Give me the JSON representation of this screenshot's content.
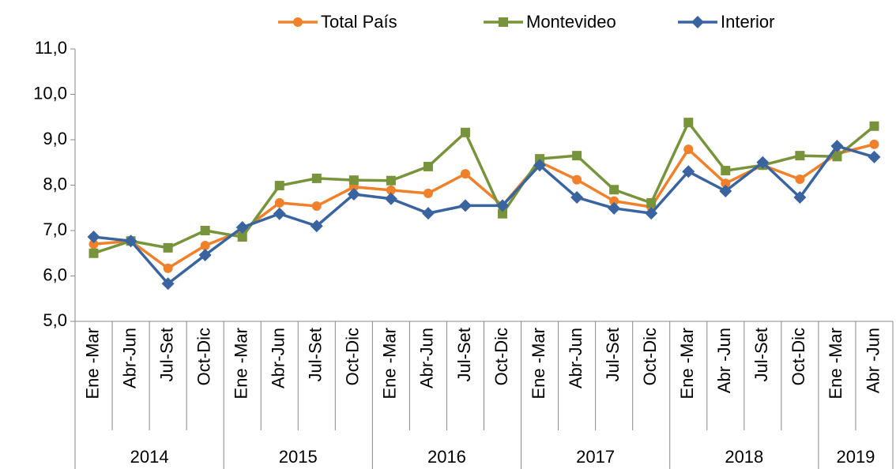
{
  "chart_data": {
    "type": "line",
    "categories": [
      "Ene -Mar",
      "Abr-Jun",
      "Jul-Set",
      "Oct-Dic",
      "Ene -Mar",
      "Abr-Jun",
      "Jul-Set",
      "Oct-Dic",
      "Ene -Mar",
      "Abr-Jun",
      "Jul-Set",
      "Oct-Dic",
      "Ene -Mar",
      "Abr-Jun",
      "Jul-Set",
      "Oct-Dic",
      "Ene -Mar",
      "Abr -Jun",
      "Jul-Set",
      "Oct-Dic",
      "Ene -Mar",
      "Abr -Jun"
    ],
    "years": [
      "2014",
      null,
      null,
      null,
      "2015",
      null,
      null,
      null,
      "2016",
      null,
      null,
      null,
      "2017",
      null,
      null,
      null,
      "2018",
      null,
      null,
      null,
      "2019",
      null
    ],
    "series": [
      {
        "name": "Total País",
        "color": "#f0802a",
        "marker": "circle",
        "values": [
          6.7,
          6.77,
          6.17,
          6.67,
          7.0,
          7.61,
          7.54,
          7.96,
          7.89,
          7.82,
          8.25,
          7.55,
          8.51,
          8.12,
          7.65,
          7.52,
          8.79,
          8.04,
          8.44,
          8.13,
          8.69,
          8.9
        ]
      },
      {
        "name": "Montevideo",
        "color": "#77933c",
        "marker": "square",
        "values": [
          6.5,
          6.77,
          6.62,
          7.0,
          6.86,
          7.99,
          8.15,
          8.11,
          8.1,
          8.41,
          9.16,
          7.37,
          8.58,
          8.65,
          7.9,
          7.61,
          9.38,
          8.32,
          8.44,
          8.65,
          8.63,
          9.3
        ]
      },
      {
        "name": "Interior",
        "color": "#3a64a0",
        "marker": "diamond",
        "values": [
          6.86,
          6.77,
          5.83,
          6.46,
          7.07,
          7.37,
          7.1,
          7.8,
          7.7,
          7.38,
          7.55,
          7.55,
          8.44,
          7.73,
          7.49,
          7.38,
          8.3,
          7.87,
          8.5,
          7.73,
          8.86,
          8.62
        ]
      }
    ],
    "ylim": [
      5,
      11
    ],
    "yticks": [
      {
        "value": 5,
        "label": "5,0"
      },
      {
        "value": 6,
        "label": "6,0"
      },
      {
        "value": 7,
        "label": "7,0"
      },
      {
        "value": 8,
        "label": "8,0"
      },
      {
        "value": 9,
        "label": "9,0"
      },
      {
        "value": 10,
        "label": "10,0"
      },
      {
        "value": 11,
        "label": "11,0"
      }
    ],
    "legend": "top"
  }
}
